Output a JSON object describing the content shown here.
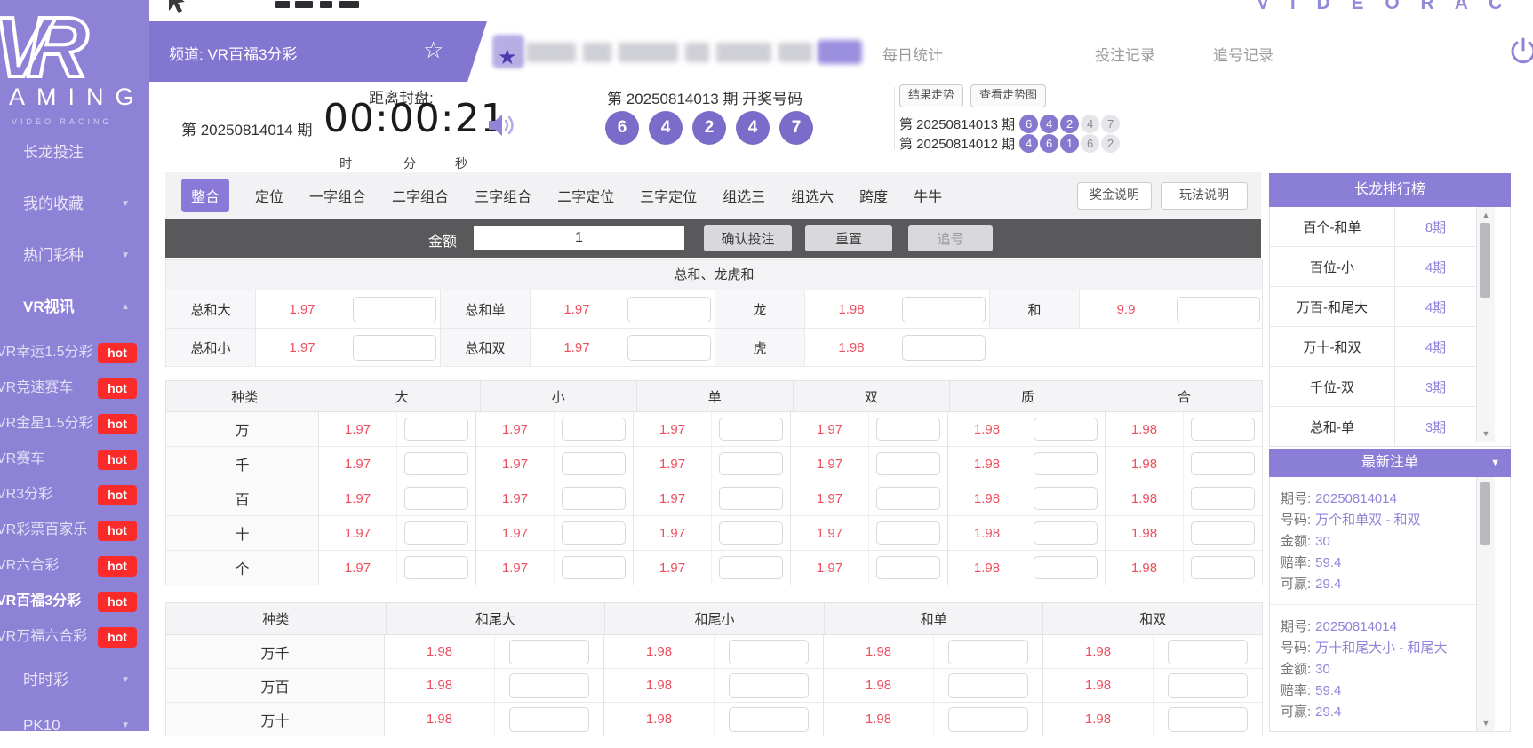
{
  "colors": {
    "sidebar_purple": "#8d82d6",
    "channel_purple": "#8276d0",
    "panel_purple": "#8a7ed6",
    "ball_purple": "#7a6cc9",
    "active_tab_purple": "#8a79d8",
    "hot_red": "#fb2b2b",
    "odds_red": "#ee4f5f",
    "value_purple": "#8f84d8",
    "dark_bar": "#59595b"
  },
  "topstrip": {
    "video_racing_letters": "V I D E O R A C"
  },
  "channel_bar": {
    "channel_label": "频道: VR百福3分彩",
    "nav_items": [
      "每日统计",
      "投注记录",
      "追号记录"
    ]
  },
  "sidebar": {
    "logo_text": "VR",
    "logo_sub": "AMING",
    "logo_tagline": "VIDEO RACING",
    "hot_badge": "hot",
    "sections": [
      {
        "label": "长龙投注",
        "arrow": ""
      },
      {
        "label": "我的收藏",
        "arrow": "down"
      },
      {
        "label": "热门彩种",
        "arrow": "down"
      },
      {
        "label": "VR视讯",
        "arrow": "up",
        "active": true
      }
    ],
    "games": [
      {
        "label": "VR幸运1.5分彩",
        "hot": true
      },
      {
        "label": "VR竞速赛车",
        "hot": true
      },
      {
        "label": "VR金星1.5分彩",
        "hot": true
      },
      {
        "label": "VR赛车",
        "hot": true
      },
      {
        "label": "VR3分彩",
        "hot": true
      },
      {
        "label": "VR彩票百家乐",
        "hot": true
      },
      {
        "label": "VR六合彩",
        "hot": true
      },
      {
        "label": "VR百福3分彩",
        "hot": true,
        "active": true
      },
      {
        "label": "VR万福六合彩",
        "hot": true
      }
    ],
    "bottom_sections": [
      {
        "label": "时时彩",
        "arrow": "down"
      },
      {
        "label": "PK10",
        "arrow": "down"
      }
    ]
  },
  "draw": {
    "current_period_label": "第 20250814014 期",
    "countdown_label": "距离封盘:",
    "countdown": "00:00:21",
    "unit_hour": "时",
    "unit_min": "分",
    "unit_sec": "秒",
    "last_draw_title": "第 20250814013 期  开奖号码",
    "last_numbers": [
      "6",
      "4",
      "2",
      "4",
      "7"
    ],
    "trend_buttons": [
      "结果走势",
      "查看走势图"
    ],
    "history": [
      {
        "period": "第 20250814013 期",
        "balls": [
          {
            "n": "6",
            "filled": true
          },
          {
            "n": "4",
            "filled": true
          },
          {
            "n": "2",
            "filled": true
          },
          {
            "n": "4",
            "filled": false
          },
          {
            "n": "7",
            "filled": false
          }
        ]
      },
      {
        "period": "第 20250814012 期",
        "balls": [
          {
            "n": "4",
            "filled": true
          },
          {
            "n": "6",
            "filled": true
          },
          {
            "n": "1",
            "filled": true
          },
          {
            "n": "6",
            "filled": false
          },
          {
            "n": "2",
            "filled": false
          }
        ]
      }
    ]
  },
  "tabs": {
    "items": [
      "整合",
      "定位",
      "一字组合",
      "二字组合",
      "三字组合",
      "二字定位",
      "三字定位",
      "组选三",
      "组选六",
      "跨度",
      "牛牛"
    ],
    "active": "整合",
    "help_buttons": [
      "奖金说明",
      "玩法说明"
    ]
  },
  "bet_bar": {
    "amount_label": "金额",
    "amount_value": "1",
    "buttons": [
      "确认投注",
      "重置",
      "追号"
    ]
  },
  "sum_section": {
    "title": "总和、龙虎和",
    "rows": [
      [
        {
          "label": "总和大",
          "odds": "1.97"
        },
        {
          "label": "总和单",
          "odds": "1.97"
        },
        {
          "label": "龙",
          "odds": "1.98"
        },
        {
          "label": "和",
          "odds": "9.9"
        }
      ],
      [
        {
          "label": "总和小",
          "odds": "1.97"
        },
        {
          "label": "总和双",
          "odds": "1.97"
        },
        {
          "label": "虎",
          "odds": "1.98"
        },
        null
      ]
    ]
  },
  "table1": {
    "headers": [
      "种类",
      "大",
      "小",
      "单",
      "双",
      "质",
      "合"
    ],
    "rows": [
      {
        "label": "万",
        "odds": [
          "1.97",
          "1.97",
          "1.97",
          "1.97",
          "1.98",
          "1.98"
        ]
      },
      {
        "label": "千",
        "odds": [
          "1.97",
          "1.97",
          "1.97",
          "1.97",
          "1.98",
          "1.98"
        ]
      },
      {
        "label": "百",
        "odds": [
          "1.97",
          "1.97",
          "1.97",
          "1.97",
          "1.98",
          "1.98"
        ]
      },
      {
        "label": "十",
        "odds": [
          "1.97",
          "1.97",
          "1.97",
          "1.97",
          "1.98",
          "1.98"
        ]
      },
      {
        "label": "个",
        "odds": [
          "1.97",
          "1.97",
          "1.97",
          "1.97",
          "1.98",
          "1.98"
        ]
      }
    ]
  },
  "table2": {
    "headers": [
      "种类",
      "和尾大",
      "和尾小",
      "和单",
      "和双"
    ],
    "rows": [
      {
        "label": "万千",
        "odds": [
          "1.98",
          "1.98",
          "1.98",
          "1.98"
        ]
      },
      {
        "label": "万百",
        "odds": [
          "1.98",
          "1.98",
          "1.98",
          "1.98"
        ]
      },
      {
        "label": "万十",
        "odds": [
          "1.98",
          "1.98",
          "1.98",
          "1.98"
        ]
      }
    ]
  },
  "ranking": {
    "title": "长龙排行榜",
    "rows": [
      {
        "name": "百个-和单",
        "count": "8期"
      },
      {
        "name": "百位-小",
        "count": "4期"
      },
      {
        "name": "万百-和尾大",
        "count": "4期"
      },
      {
        "name": "万十-和双",
        "count": "4期"
      },
      {
        "name": "千位-双",
        "count": "3期"
      },
      {
        "name": "总和-单",
        "count": "3期"
      }
    ]
  },
  "latest_bets": {
    "title": "最新注单",
    "labels": {
      "period": "期号:",
      "number": "号码:",
      "amount": "金额:",
      "odds": "赔率:",
      "win": "可赢:"
    },
    "entries": [
      {
        "period": "20250814014",
        "number": "万个和单双 - 和双",
        "amount": "30",
        "odds": "59.4",
        "win": "29.4"
      },
      {
        "period": "20250814014",
        "number": "万十和尾大小 - 和尾大",
        "amount": "30",
        "odds": "59.4",
        "win": "29.4"
      }
    ]
  }
}
